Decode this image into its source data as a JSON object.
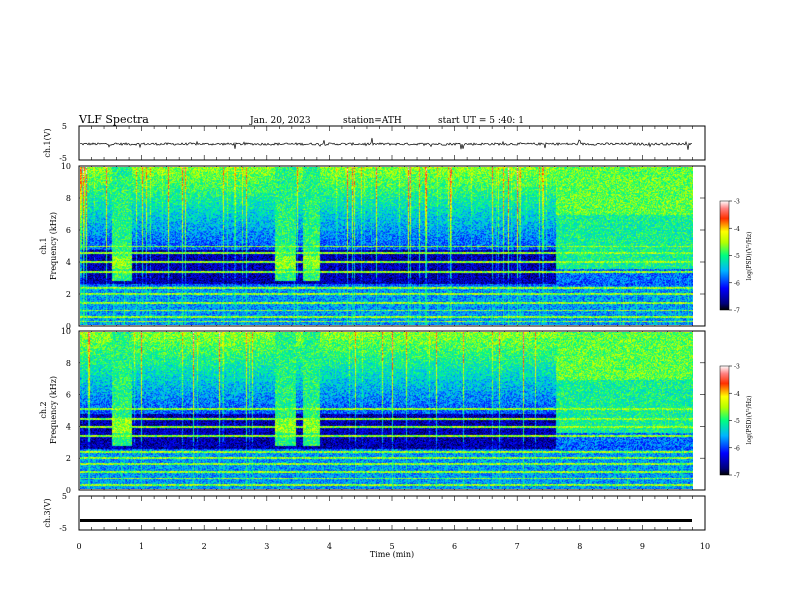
{
  "header": {
    "title": "VLF  Spectra",
    "date": "Jan. 20, 2023",
    "station": "station=ATH",
    "start": "start  UT  =    5  :40: 1"
  },
  "chart_data": [
    {
      "type": "line",
      "panel": "ch1-waveform",
      "ylabel": "ch.1(V)",
      "ylim": [
        -5,
        5
      ],
      "yticks": [
        "5",
        "-5"
      ],
      "baseline": -0.3,
      "noise_amplitude": 0.35,
      "spike_amplitude": 1.6,
      "xlim": [
        0,
        9.8
      ]
    },
    {
      "type": "heatmap",
      "panel": "ch1-spectrogram",
      "ylabel": "ch.1\nFrequency (kHz)",
      "ylabel_lines": [
        "ch.1",
        "Frequency  (kHz)"
      ],
      "ylim": [
        0,
        10
      ],
      "yticks": [
        "0",
        "2",
        "4",
        "6",
        "8",
        "10"
      ],
      "xlim": [
        0,
        9.8
      ],
      "bursts_min": [
        [
          0.5,
          0.82
        ],
        [
          3.1,
          3.45
        ],
        [
          3.55,
          3.82
        ]
      ],
      "noisy_after_min": 7.6,
      "hum_bands_khz": [
        0.25,
        0.55,
        0.95,
        1.4,
        2.0,
        2.35,
        3.4,
        4.0,
        4.6,
        5.0
      ]
    },
    {
      "type": "heatmap",
      "panel": "ch2-spectrogram",
      "ylabel_lines": [
        "ch.2",
        "Frequency  (kHz)"
      ],
      "ylim": [
        0,
        10
      ],
      "yticks": [
        "0",
        "2",
        "4",
        "6",
        "8",
        "10"
      ],
      "xlim": [
        0,
        9.8
      ],
      "bursts_min": [
        [
          0.5,
          0.82
        ],
        [
          3.1,
          3.45
        ],
        [
          3.55,
          3.82
        ]
      ],
      "noisy_after_min": 7.6,
      "hum_bands_khz": [
        0.3,
        0.7,
        1.1,
        1.6,
        2.0,
        2.4,
        3.4,
        4.0,
        4.5,
        5.1
      ]
    },
    {
      "type": "line",
      "panel": "ch3-waveform",
      "ylabel": "ch.3(V)",
      "ylim": [
        -5,
        5
      ],
      "yticks": [
        "5",
        "-5"
      ],
      "baseline": -2.2,
      "thick": true,
      "xlim": [
        0,
        9.8
      ],
      "xlabel": "Time  (min)",
      "xlim_axis": [
        0,
        10
      ],
      "xticks": [
        "0",
        "1",
        "2",
        "3",
        "4",
        "5",
        "6",
        "7",
        "8",
        "9",
        "10"
      ]
    }
  ],
  "colorbar": {
    "label": "log(PSD)(V²/Hz)",
    "ticks": [
      "-3",
      "-4",
      "-5",
      "-6",
      "-7"
    ],
    "range": [
      -7,
      -3
    ]
  }
}
